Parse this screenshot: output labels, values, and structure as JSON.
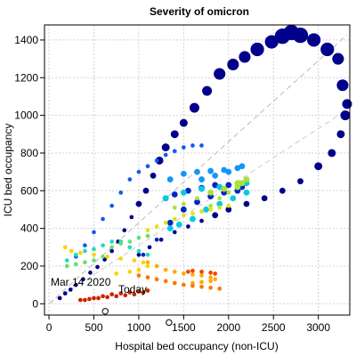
{
  "chart_data": {
    "type": "scatter",
    "title": "Severity of omicron",
    "xlabel": "Hospital bed occupancy (non-ICU)",
    "ylabel": "ICU bed occupancy",
    "xlim": [
      -50,
      3350
    ],
    "ylim": [
      -60,
      1480
    ],
    "x_ticks": [
      0,
      500,
      1000,
      1500,
      2000,
      2500,
      3000
    ],
    "y_ticks": [
      0,
      200,
      400,
      600,
      800,
      1000,
      1200,
      1400
    ],
    "grid": true,
    "reference_lines": [
      {
        "slope": 0.43,
        "style": "dashed",
        "color": "#bbbbbb"
      },
      {
        "slope": 0.31,
        "style": "dashed",
        "color": "#cccccc"
      }
    ],
    "annotations": [
      {
        "text": "Mar 14 2020",
        "x": 250,
        "y": 130
      },
      {
        "text": "Today",
        "x": 960,
        "y": 80
      }
    ],
    "colors": {
      "early": "#00008b",
      "late": "#cc2200"
    },
    "series": [
      {
        "points": [
          [
            120,
            30
          ],
          [
            180,
            55
          ],
          [
            240,
            75
          ],
          [
            300,
            100
          ],
          [
            380,
            130
          ],
          [
            460,
            165
          ],
          [
            540,
            195
          ],
          [
            620,
            235
          ],
          [
            700,
            280
          ],
          [
            770,
            330
          ],
          [
            840,
            390
          ],
          [
            920,
            460
          ],
          [
            1000,
            530
          ],
          [
            1080,
            600
          ],
          [
            1160,
            680
          ],
          [
            1230,
            760
          ],
          [
            1300,
            830
          ],
          [
            1400,
            900
          ],
          [
            1500,
            960
          ],
          [
            1620,
            1040
          ],
          [
            1760,
            1130
          ],
          [
            1900,
            1220
          ],
          [
            2050,
            1270
          ],
          [
            2180,
            1310
          ],
          [
            2320,
            1350
          ],
          [
            2480,
            1390
          ],
          [
            2600,
            1420
          ],
          [
            2700,
            1440
          ],
          [
            2800,
            1425
          ],
          [
            2950,
            1400
          ],
          [
            3100,
            1350
          ],
          [
            3220,
            1300
          ],
          [
            3270,
            1160
          ],
          [
            3320,
            1060
          ],
          [
            3300,
            1000
          ],
          [
            3250,
            900
          ],
          [
            3150,
            800
          ],
          [
            3000,
            730
          ],
          [
            2800,
            650
          ],
          [
            2600,
            600
          ],
          [
            2400,
            560
          ],
          [
            2200,
            530
          ],
          [
            2000,
            500
          ],
          [
            1850,
            470
          ],
          [
            1700,
            440
          ],
          [
            1550,
            410
          ],
          [
            1400,
            380
          ],
          [
            1250,
            340
          ],
          [
            1120,
            300
          ],
          [
            1000,
            260
          ]
        ],
        "sizes": [
          1,
          1,
          1,
          1,
          1,
          1,
          1,
          1,
          1,
          1,
          1,
          1,
          2,
          2,
          2,
          3,
          3,
          3,
          3,
          4,
          4,
          5,
          5,
          5,
          6,
          6,
          7,
          7,
          7,
          6,
          6,
          5,
          5,
          4,
          4,
          3,
          3,
          3,
          2,
          2,
          2,
          2,
          2,
          2,
          1,
          1,
          1,
          1,
          1,
          1
        ]
      },
      {
        "points": [
          [
            1050,
            260
          ],
          [
            1200,
            340
          ],
          [
            1350,
            430
          ],
          [
            1500,
            500
          ],
          [
            1650,
            540
          ],
          [
            1800,
            570
          ],
          [
            1950,
            590
          ],
          [
            2100,
            600
          ],
          [
            2150,
            620
          ],
          [
            2000,
            630
          ],
          [
            1850,
            630
          ],
          [
            1700,
            615
          ],
          [
            1550,
            600
          ],
          [
            1400,
            580
          ],
          [
            1300,
            560
          ]
        ],
        "sizes": [
          1,
          1,
          2,
          2,
          2,
          2,
          2,
          2,
          2,
          2,
          2,
          2,
          2,
          2,
          2
        ]
      },
      {
        "points": [
          [
            300,
            250
          ],
          [
            400,
            310
          ],
          [
            500,
            380
          ],
          [
            600,
            450
          ],
          [
            700,
            520
          ],
          [
            800,
            590
          ],
          [
            900,
            660
          ],
          [
            1000,
            700
          ],
          [
            1100,
            730
          ],
          [
            1200,
            760
          ],
          [
            1300,
            790
          ],
          [
            1400,
            810
          ],
          [
            1500,
            830
          ],
          [
            1600,
            840
          ],
          [
            1700,
            840
          ]
        ],
        "sizes": [
          1,
          1,
          1,
          1,
          1,
          1,
          1,
          1,
          1,
          1,
          1,
          1,
          1,
          1,
          1
        ]
      },
      {
        "points": [
          [
            1350,
            660
          ],
          [
            1500,
            690
          ],
          [
            1650,
            700
          ],
          [
            1800,
            705
          ],
          [
            1950,
            710
          ],
          [
            2100,
            720
          ],
          [
            2150,
            730
          ],
          [
            2000,
            700
          ],
          [
            1850,
            680
          ],
          [
            1700,
            660
          ]
        ],
        "sizes": [
          2,
          2,
          2,
          2,
          2,
          2,
          2,
          2,
          2,
          2
        ]
      },
      {
        "points": [
          [
            1300,
            560
          ],
          [
            1500,
            590
          ],
          [
            1700,
            610
          ],
          [
            1900,
            620
          ],
          [
            2100,
            620
          ],
          [
            2200,
            640
          ],
          [
            2200,
            590
          ],
          [
            2050,
            560
          ],
          [
            1900,
            530
          ],
          [
            1750,
            500
          ],
          [
            1600,
            450
          ],
          [
            1450,
            420
          ],
          [
            1350,
            400
          ]
        ],
        "sizes": [
          2,
          2,
          2,
          2,
          2,
          2,
          2,
          2,
          2,
          2,
          2,
          2,
          2
        ]
      },
      {
        "points": [
          [
            200,
            230
          ],
          [
            300,
            260
          ],
          [
            400,
            280
          ],
          [
            500,
            290
          ],
          [
            600,
            310
          ],
          [
            700,
            330
          ],
          [
            800,
            330
          ],
          [
            900,
            300
          ],
          [
            1000,
            280
          ],
          [
            1100,
            260
          ]
        ],
        "sizes": [
          1,
          1,
          1,
          1,
          1,
          1,
          1,
          1,
          1,
          1
        ]
      },
      {
        "points": [
          [
            200,
            200
          ],
          [
            300,
            210
          ],
          [
            400,
            220
          ],
          [
            500,
            230
          ],
          [
            600,
            250
          ],
          [
            700,
            300
          ],
          [
            800,
            320
          ],
          [
            900,
            330
          ],
          [
            1000,
            350
          ],
          [
            1100,
            360
          ]
        ],
        "sizes": [
          1,
          1,
          1,
          1,
          1,
          1,
          1,
          1,
          1,
          1
        ]
      },
      {
        "points": [
          [
            1800,
            520
          ],
          [
            1900,
            560
          ],
          [
            2000,
            590
          ],
          [
            2100,
            620
          ],
          [
            2150,
            640
          ],
          [
            2200,
            660
          ],
          [
            2100,
            640
          ],
          [
            1950,
            610
          ],
          [
            1800,
            590
          ],
          [
            1650,
            560
          ],
          [
            1500,
            530
          ],
          [
            1400,
            510
          ]
        ],
        "sizes": [
          1,
          1,
          1,
          2,
          2,
          2,
          2,
          2,
          2,
          1,
          1,
          1
        ]
      },
      {
        "points": [
          [
            1100,
            390
          ],
          [
            1200,
            410
          ],
          [
            1300,
            430
          ],
          [
            1400,
            450
          ],
          [
            1500,
            470
          ],
          [
            1600,
            480
          ],
          [
            1700,
            490
          ],
          [
            1800,
            500
          ],
          [
            1900,
            510
          ],
          [
            2000,
            520
          ]
        ],
        "sizes": [
          1,
          1,
          1,
          1,
          1,
          1,
          1,
          1,
          1,
          1
        ]
      },
      {
        "points": [
          [
            180,
            300
          ],
          [
            250,
            280
          ],
          [
            350,
            270
          ],
          [
            500,
            260
          ],
          [
            650,
            250
          ],
          [
            800,
            240
          ],
          [
            950,
            230
          ],
          [
            1050,
            220
          ],
          [
            1100,
            200
          ],
          [
            1000,
            180
          ],
          [
            900,
            170
          ],
          [
            750,
            160
          ]
        ],
        "sizes": [
          1,
          1,
          1,
          1,
          1,
          1,
          1,
          1,
          1,
          1,
          1,
          1
        ]
      },
      {
        "points": [
          [
            1100,
            220
          ],
          [
            1200,
            200
          ],
          [
            1300,
            180
          ],
          [
            1400,
            170
          ],
          [
            1500,
            160
          ],
          [
            1600,
            155
          ],
          [
            1700,
            150
          ],
          [
            1800,
            140
          ],
          [
            1850,
            130
          ],
          [
            1800,
            120
          ],
          [
            1700,
            115
          ],
          [
            1600,
            110
          ]
        ],
        "sizes": [
          1,
          1,
          1,
          1,
          1,
          1,
          1,
          1,
          1,
          1,
          1,
          1
        ]
      },
      {
        "points": [
          [
            1000,
            150
          ],
          [
            1100,
            140
          ],
          [
            1200,
            130
          ],
          [
            1300,
            120
          ],
          [
            1400,
            110
          ],
          [
            1500,
            100
          ],
          [
            1600,
            95
          ],
          [
            1700,
            90
          ],
          [
            1800,
            85
          ],
          [
            1900,
            80
          ]
        ],
        "sizes": [
          1,
          1,
          1,
          1,
          1,
          1,
          1,
          1,
          1,
          1
        ]
      },
      {
        "points": [
          [
            1550,
            170
          ],
          [
            1600,
            175
          ],
          [
            1700,
            170
          ],
          [
            1800,
            165
          ],
          [
            1850,
            160
          ]
        ],
        "sizes": [
          1,
          1,
          1,
          1,
          1
        ]
      },
      {
        "points": [
          [
            350,
            20
          ],
          [
            450,
            25
          ],
          [
            550,
            30
          ],
          [
            650,
            35
          ],
          [
            750,
            40
          ],
          [
            850,
            45
          ],
          [
            950,
            50
          ],
          [
            1050,
            60
          ],
          [
            1100,
            70
          ],
          [
            1000,
            65
          ],
          [
            900,
            60
          ],
          [
            800,
            55
          ],
          [
            700,
            50
          ],
          [
            600,
            40
          ],
          [
            500,
            30
          ],
          [
            400,
            20
          ]
        ],
        "sizes": [
          1,
          1,
          1,
          1,
          1,
          1,
          1,
          1,
          1,
          1,
          1,
          1,
          1,
          1,
          1,
          1
        ]
      }
    ]
  }
}
